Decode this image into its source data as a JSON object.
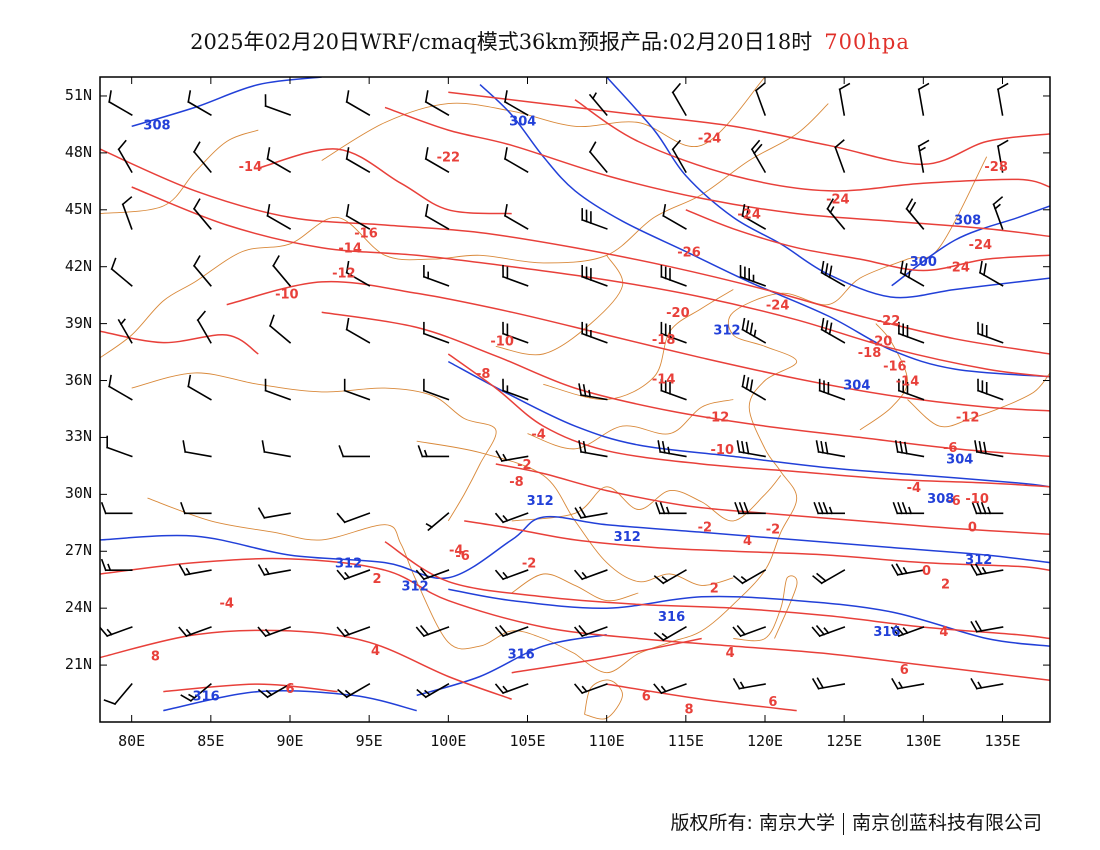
{
  "header": {
    "title": "2025年02月20日WRF/cmaq模式36km预报产品:02月20日18时",
    "level": "700hpa"
  },
  "colors": {
    "temperature_contour": "#e8403a",
    "height_contour": "#2240d8",
    "boundary": "#d9893a",
    "wind_barb": "#000000",
    "frame": "#000000"
  },
  "map": {
    "lon_range": [
      78,
      138
    ],
    "lat_range": [
      18,
      52
    ],
    "lat_ticks": [
      "51N",
      "48N",
      "45N",
      "42N",
      "39N",
      "36N",
      "33N",
      "30N",
      "27N",
      "24N",
      "21N"
    ],
    "lon_ticks": [
      "80E",
      "85E",
      "90E",
      "95E",
      "100E",
      "105E",
      "110E",
      "115E",
      "120E",
      "125E",
      "130E",
      "135E"
    ],
    "temperature_labels": [
      "-24",
      "-22",
      "-14",
      "-16",
      "-14",
      "-12",
      "-10",
      "-24",
      "-24",
      "-26",
      "-28",
      "-24",
      "-24",
      "-24",
      "-20",
      "-18",
      "-10",
      "-8",
      "-14",
      "-22",
      "-20",
      "-18",
      "-16",
      "-14",
      "-12",
      "-12",
      "-10",
      "-6",
      "-4",
      "-2",
      "-10",
      "-8",
      "-6",
      "-4",
      "-2",
      "-2",
      "0",
      "-6",
      "-4",
      "-2",
      "2",
      "0",
      "2",
      "2",
      "4",
      "-4",
      "4",
      "4",
      "4",
      "6",
      "6",
      "6",
      "6",
      "8",
      "8"
    ],
    "height_labels": [
      "308",
      "304",
      "300",
      "308",
      "304",
      "312",
      "312",
      "312",
      "316",
      "312",
      "316",
      "316",
      "308",
      "312",
      "304",
      "312",
      "316"
    ]
  },
  "footer": {
    "copyright_left": "版权所有: 南京大学",
    "copyright_right": "南京创蓝科技有限公司"
  }
}
